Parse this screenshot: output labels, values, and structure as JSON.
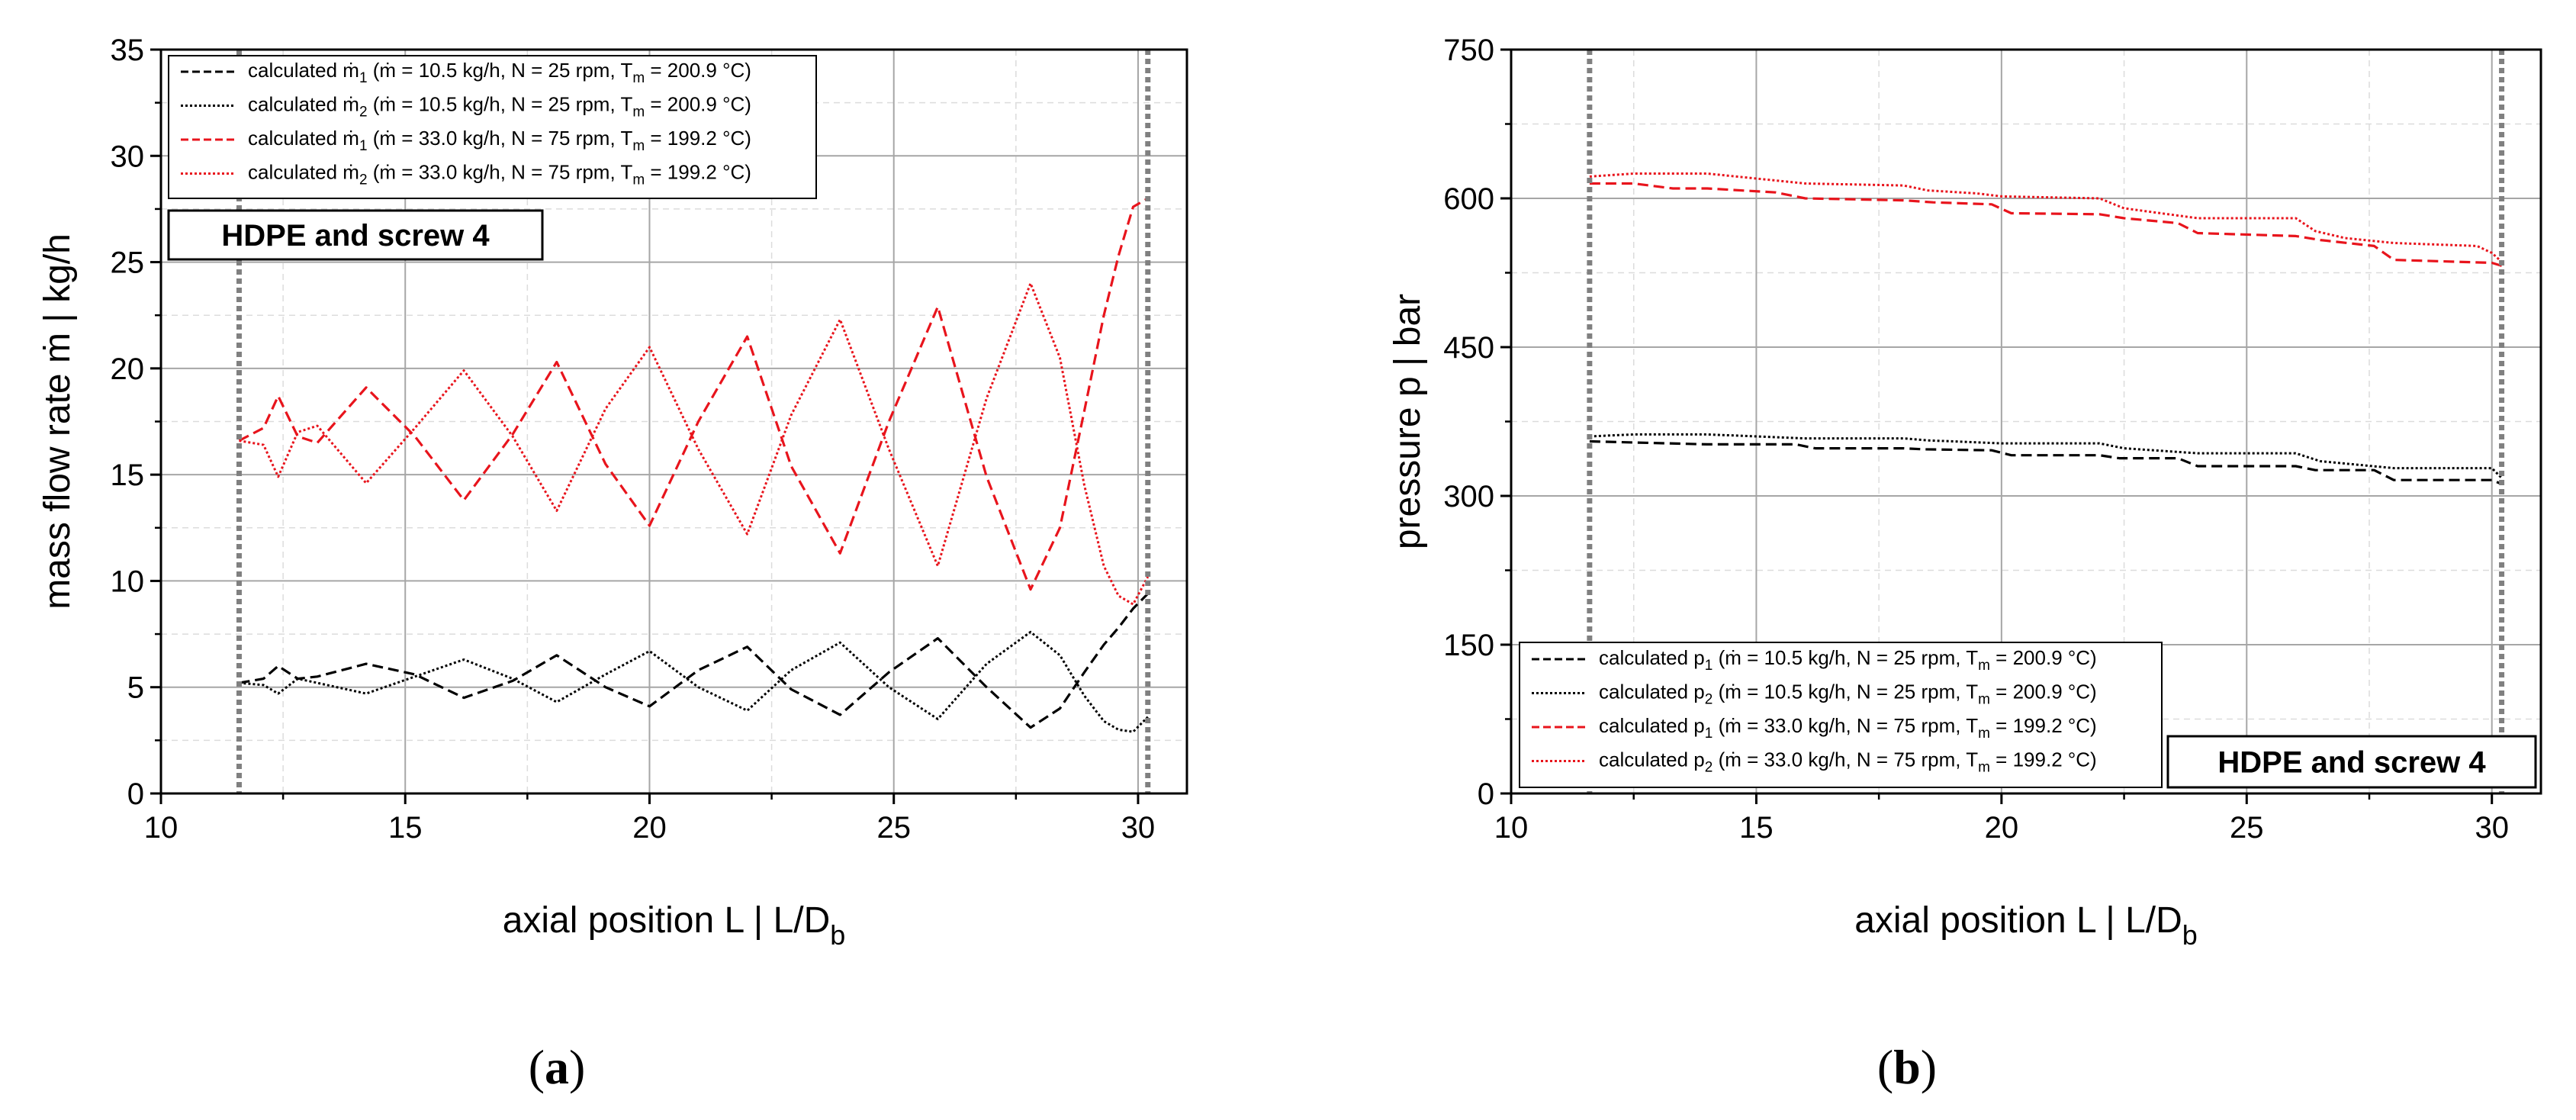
{
  "chart_data": [
    {
      "type": "line",
      "panel_label": "a",
      "xlabel": "axial position L  |  L/D",
      "xlabel_sub": "b",
      "ylabel": "mass flow rate ṁ  |  kg/h",
      "xlim": [
        10,
        31
      ],
      "ylim": [
        0,
        35
      ],
      "xticks": [
        10,
        15,
        20,
        25,
        30
      ],
      "yticks": [
        0,
        5,
        10,
        15,
        20,
        25,
        30,
        35
      ],
      "grid": true,
      "vlines": [
        11.6,
        30.2
      ],
      "badge": "HDPE and screw 4",
      "legend_position": "top-left",
      "series": [
        {
          "name": "calculated ṁ₁",
          "sub": "1",
          "params": " (ṁ = 10.5 kg/h, N = 25 rpm, T",
          "tsub": "m",
          "tail": " = 200.9 °C)",
          "color": "#000000",
          "style": "dashed",
          "x": [
            11.6,
            12.1,
            12.4,
            12.8,
            13.2,
            14.2,
            15.2,
            16.2,
            17.2,
            18.1,
            19.1,
            20.0,
            21.0,
            22.0,
            22.9,
            23.9,
            24.9,
            25.9,
            26.9,
            27.8,
            28.4,
            28.9,
            29.3,
            29.6,
            29.9,
            30.2
          ],
          "y": [
            5.2,
            5.4,
            6.0,
            5.4,
            5.5,
            6.1,
            5.6,
            4.5,
            5.3,
            6.5,
            5.0,
            4.1,
            5.8,
            6.9,
            4.9,
            3.7,
            5.7,
            7.3,
            5.0,
            3.1,
            4.0,
            5.7,
            7.0,
            7.8,
            8.7,
            9.4
          ]
        },
        {
          "name": "calculated ṁ₂",
          "sub": "2",
          "params": " (ṁ = 10.5 kg/h, N = 25 rpm, T",
          "tsub": "m",
          "tail": " = 200.9 °C)",
          "color": "#000000",
          "style": "dotted",
          "x": [
            11.6,
            12.1,
            12.4,
            12.8,
            13.2,
            14.2,
            15.2,
            16.2,
            17.2,
            18.1,
            19.1,
            20.0,
            21.0,
            22.0,
            22.9,
            23.9,
            24.9,
            25.9,
            26.9,
            27.8,
            28.4,
            28.9,
            29.3,
            29.6,
            29.9,
            30.2
          ],
          "y": [
            5.2,
            5.1,
            4.7,
            5.4,
            5.2,
            4.7,
            5.5,
            6.3,
            5.4,
            4.3,
            5.6,
            6.7,
            5.0,
            3.9,
            5.8,
            7.1,
            5.0,
            3.5,
            6.1,
            7.6,
            6.5,
            4.6,
            3.4,
            3.0,
            2.9,
            3.6
          ]
        },
        {
          "name": "calculated ṁ₁",
          "sub": "1",
          "params": " (ṁ = 33.0 kg/h, N = 75 rpm, T",
          "tsub": "m",
          "tail": " = 199.2 °C)",
          "color": "#e8141c",
          "style": "dashed",
          "x": [
            11.6,
            12.1,
            12.4,
            12.8,
            13.2,
            14.2,
            15.2,
            16.2,
            17.2,
            18.1,
            19.1,
            20.0,
            21.0,
            22.0,
            22.9,
            23.9,
            24.9,
            25.9,
            26.9,
            27.8,
            28.4,
            28.9,
            29.3,
            29.6,
            29.9,
            30.2
          ],
          "y": [
            16.6,
            17.2,
            18.7,
            16.8,
            16.5,
            19.1,
            16.8,
            13.8,
            16.9,
            20.3,
            15.5,
            12.6,
            17.5,
            21.5,
            15.4,
            11.3,
            17.5,
            22.9,
            14.9,
            9.6,
            12.5,
            18.0,
            22.5,
            25.3,
            27.6,
            28.0
          ]
        },
        {
          "name": "calculated ṁ₂",
          "sub": "2",
          "params": " (ṁ = 33.0 kg/h, N = 75 rpm, T",
          "tsub": "m",
          "tail": " = 199.2 °C)",
          "color": "#e8141c",
          "style": "dotted",
          "x": [
            11.6,
            12.1,
            12.4,
            12.8,
            13.2,
            14.2,
            15.2,
            16.2,
            17.2,
            18.1,
            19.1,
            20.0,
            21.0,
            22.0,
            22.9,
            23.9,
            24.9,
            25.9,
            26.9,
            27.8,
            28.4,
            28.9,
            29.3,
            29.6,
            29.9,
            30.2
          ],
          "y": [
            16.6,
            16.4,
            14.9,
            17.0,
            17.3,
            14.6,
            17.2,
            19.9,
            16.8,
            13.3,
            18.1,
            21.0,
            16.2,
            12.2,
            17.8,
            22.3,
            16.2,
            10.7,
            18.6,
            24.0,
            20.5,
            14.5,
            10.7,
            9.3,
            8.9,
            10.2
          ]
        }
      ]
    },
    {
      "type": "line",
      "panel_label": "b",
      "xlabel": "axial position L  |  L/D",
      "xlabel_sub": "b",
      "ylabel": "pressure p  |  bar",
      "xlim": [
        10,
        31
      ],
      "ylim": [
        0,
        750
      ],
      "xticks": [
        10,
        15,
        20,
        25,
        30
      ],
      "yticks": [
        0,
        150,
        300,
        450,
        600,
        750
      ],
      "grid": true,
      "vlines": [
        11.6,
        30.2
      ],
      "badge": "HDPE and screw 4",
      "legend_position": "bottom-left",
      "series": [
        {
          "name": "calculated p₁",
          "sub": "1",
          "params": " (ṁ = 10.5 kg/h, N = 25 rpm, T",
          "tsub": "m",
          "tail": " = 200.9 °C)",
          "color": "#000000",
          "style": "dashed",
          "x": [
            11.6,
            14,
            15.8,
            16.2,
            18,
            18.4,
            19.8,
            20.2,
            22,
            22.4,
            23.6,
            24,
            26,
            26.4,
            27.6,
            28,
            30,
            30.2
          ],
          "y": [
            355,
            352,
            352,
            348,
            348,
            347,
            346,
            341,
            341,
            338,
            338,
            330,
            330,
            326,
            326,
            316,
            316,
            312
          ]
        },
        {
          "name": "calculated p₂",
          "sub": "2",
          "params": " (ṁ = 10.5 kg/h, N = 25 rpm, T",
          "tsub": "m",
          "tail": " = 200.9 °C)",
          "color": "#000000",
          "style": "dotted",
          "x": [
            11.6,
            12.5,
            14,
            15,
            16,
            18,
            18.5,
            19.5,
            20,
            22,
            22.5,
            24,
            26,
            26.5,
            28,
            30,
            30.2
          ],
          "y": [
            360,
            362,
            362,
            360,
            358,
            358,
            356,
            354,
            353,
            353,
            348,
            343,
            343,
            335,
            328,
            328,
            318
          ]
        },
        {
          "name": "calculated p₁",
          "sub": "1",
          "params": " (ṁ = 33.0 kg/h, N = 75 rpm, T",
          "tsub": "m",
          "tail": " = 199.2 °C)",
          "color": "#e8141c",
          "style": "dashed",
          "x": [
            11.6,
            12.5,
            13.3,
            14,
            15.4,
            16,
            18,
            18.6,
            19.8,
            20.2,
            22,
            22.5,
            23.6,
            24,
            26,
            26.5,
            27.6,
            28,
            30,
            30.2
          ],
          "y": [
            615,
            615,
            610,
            610,
            606,
            600,
            598,
            596,
            594,
            585,
            584,
            580,
            575,
            565,
            562,
            558,
            552,
            538,
            535,
            532
          ]
        },
        {
          "name": "calculated p₂",
          "sub": "2",
          "params": " (ṁ = 33.0 kg/h, N = 75 rpm, T",
          "tsub": "m",
          "tail": " = 199.2 °C)",
          "color": "#e8141c",
          "style": "dotted",
          "x": [
            11.6,
            12.5,
            14,
            15,
            16,
            18,
            18.5,
            19.5,
            20,
            22,
            22.5,
            24,
            26,
            26.4,
            27,
            28,
            29.7,
            30,
            30.2
          ],
          "y": [
            622,
            625,
            625,
            620,
            615,
            613,
            608,
            605,
            602,
            600,
            590,
            580,
            580,
            567,
            560,
            555,
            552,
            545,
            536
          ]
        }
      ]
    }
  ]
}
